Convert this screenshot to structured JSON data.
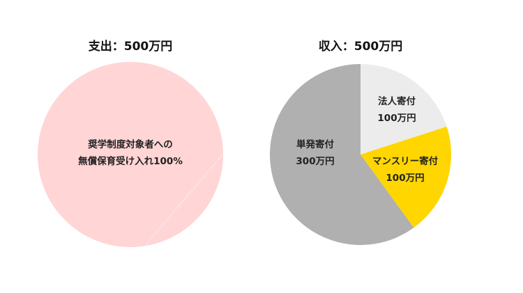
{
  "chart_data": [
    {
      "type": "pie",
      "title": "支出：500万円",
      "slices": [
        {
          "label": [
            "奨学制度対象者への",
            "無償保育受け入れ100%"
          ],
          "value": 500,
          "color": "#ffd5d5"
        }
      ]
    },
    {
      "type": "pie",
      "title": "収入：500万円",
      "slices": [
        {
          "label": [
            "法人寄付",
            "100万円"
          ],
          "value": 100,
          "color": "#ececec"
        },
        {
          "label": [
            "マンスリー寄付",
            "100万円"
          ],
          "value": 100,
          "color": "#ffd600"
        },
        {
          "label": [
            "単発寄付",
            "300万円"
          ],
          "value": 300,
          "color": "#b0b0b0"
        }
      ]
    }
  ]
}
